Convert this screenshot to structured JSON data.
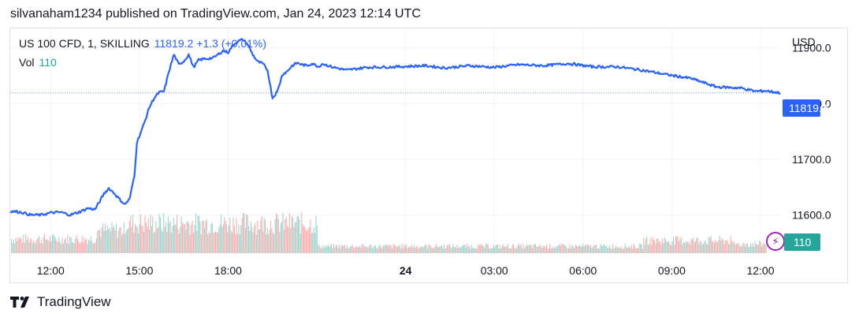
{
  "header": {
    "attribution": "silvanaham1234 published on TradingView.com, Jan 24, 2023 12:14 UTC"
  },
  "legend": {
    "symbol": "US 100 CFD, 1, SKILLING",
    "last_price": "11819.2",
    "change": "+1.3 (+0.01%)",
    "volume_label": "Vol",
    "volume_value": "110"
  },
  "axis": {
    "currency": "USD",
    "price_badge": "11819.2",
    "volume_badge": "110"
  },
  "footer": {
    "brand": "TradingView"
  },
  "colors": {
    "line": "#2962ff",
    "vol_up": "#26a69a",
    "vol_down": "#ef5350",
    "grid": "#f0f3fa",
    "price_line": "#2962ff"
  },
  "chart_data": {
    "type": "line",
    "symbol": "US 100 CFD, 1, SKILLING",
    "ylim": [
      11530,
      11935
    ],
    "y_ticks": [
      "11900.0",
      "11800.0",
      "11700.0",
      "11600.0"
    ],
    "y_tick_values": [
      11900,
      11800,
      11700,
      11600
    ],
    "x_tick_labels": [
      {
        "label": "12:00",
        "t": 0
      },
      {
        "label": "15:00",
        "t": 180
      },
      {
        "label": "18:00",
        "t": 360
      },
      {
        "label": "24",
        "t": 720,
        "bold": true
      },
      {
        "label": "03:00",
        "t": 900
      },
      {
        "label": "06:00",
        "t": 1080
      },
      {
        "label": "09:00",
        "t": 1260
      },
      {
        "label": "12:00",
        "t": 1440
      }
    ],
    "current_price": 11819.2,
    "series": [
      {
        "kind": "price",
        "t": [
          -82,
          -60,
          -40,
          -20,
          0,
          20,
          40,
          60,
          75,
          90,
          100,
          108,
          118,
          130,
          140,
          150,
          160,
          170,
          175,
          180,
          190,
          200,
          210,
          220,
          230,
          240,
          250,
          260,
          270,
          280,
          290,
          300,
          310,
          330,
          350,
          360,
          370,
          380,
          390,
          400,
          410,
          420,
          430,
          440,
          450,
          460,
          470,
          480,
          490,
          500,
          510,
          520,
          530,
          545,
          550,
          570,
          600,
          640,
          700,
          760,
          800,
          850,
          900,
          950,
          1000,
          1050,
          1100,
          1150,
          1200,
          1250,
          1300,
          1350,
          1400,
          1430,
          1450,
          1480
        ],
        "values": [
          11607,
          11605,
          11600,
          11600,
          11604,
          11605,
          11600,
          11606,
          11612,
          11610,
          11625,
          11638,
          11648,
          11638,
          11628,
          11619,
          11628,
          11672,
          11730,
          11742,
          11765,
          11793,
          11810,
          11820,
          11822,
          11858,
          11888,
          11870,
          11876,
          11888,
          11865,
          11878,
          11880,
          11882,
          11895,
          11892,
          11905,
          11912,
          11915,
          11906,
          11888,
          11875,
          11872,
          11860,
          11810,
          11822,
          11852,
          11858,
          11868,
          11873,
          11870,
          11868,
          11872,
          11866,
          11872,
          11866,
          11860,
          11865,
          11866,
          11868,
          11864,
          11868,
          11865,
          11870,
          11868,
          11872,
          11866,
          11866,
          11860,
          11852,
          11845,
          11830,
          11828,
          11822,
          11823,
          11819
        ]
      }
    ],
    "volume": {
      "description": "Volume histogram: high activity (about 50–80) during US session 12:00–19:30, low (about 10–25) overnight, rising again (about 20–45) around 08:00–11:00.",
      "last_volume": 110
    }
  }
}
